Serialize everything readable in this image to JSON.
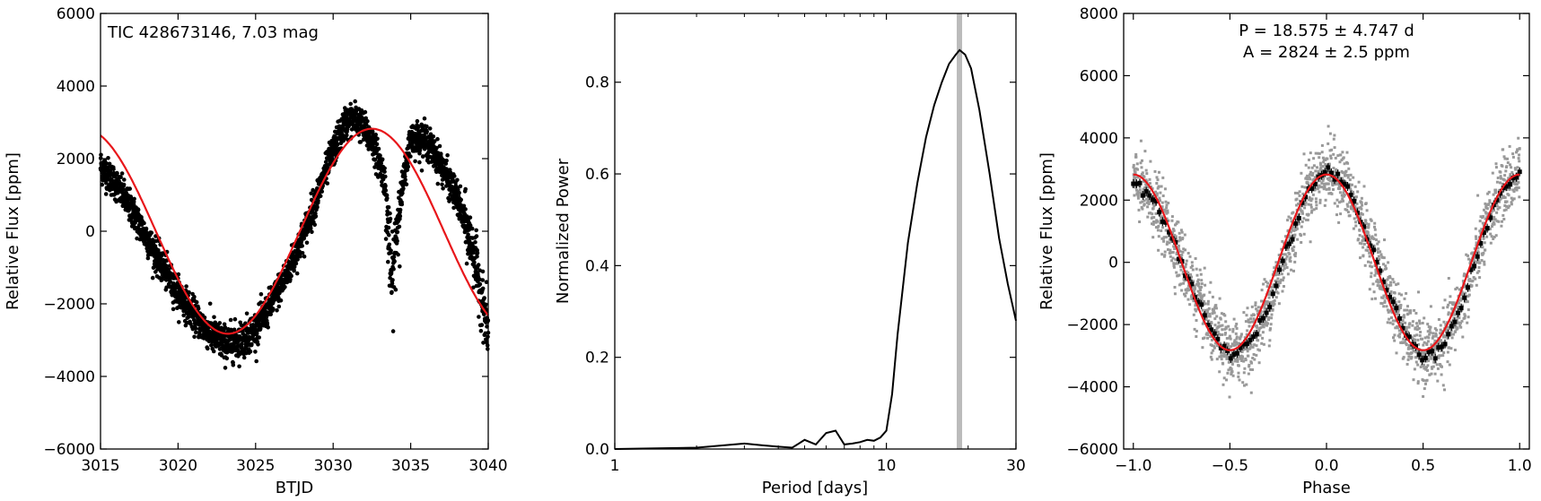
{
  "chart_data": [
    {
      "type": "scatter",
      "annotation": "TIC 428673146, 7.03 mag",
      "xlabel": "BTJD",
      "ylabel": "Relative Flux [ppm]",
      "xlim": [
        3015,
        3040
      ],
      "ylim": [
        -6000,
        6000
      ],
      "xticks": [
        3015,
        3020,
        3025,
        3030,
        3035,
        3040
      ],
      "yticks": [
        -6000,
        -4000,
        -2000,
        0,
        2000,
        4000,
        6000
      ],
      "xtick_labels": [
        "3015",
        "3020",
        "3025",
        "3030",
        "3035",
        "3040"
      ],
      "ytick_labels": [
        "−6000",
        "−4000",
        "−2000",
        "0",
        "2000",
        "4000",
        "6000"
      ],
      "data_color": "#000000",
      "model_color": "#e8161a",
      "data_points": [
        [
          3015.0,
          1800
        ],
        [
          3016.0,
          1300
        ],
        [
          3017.0,
          600
        ],
        [
          3018.0,
          -200
        ],
        [
          3019.0,
          -1000
        ],
        [
          3020.0,
          -1700
        ],
        [
          3021.0,
          -2300
        ],
        [
          3022.0,
          -2800
        ],
        [
          3023.0,
          -3100
        ],
        [
          3024.0,
          -3000
        ],
        [
          3025.0,
          -2700
        ],
        [
          3026.0,
          -2000
        ],
        [
          3027.0,
          -1200
        ],
        [
          3028.0,
          -200
        ],
        [
          3029.0,
          1000
        ],
        [
          3030.0,
          2200
        ],
        [
          3030.8,
          3000
        ],
        [
          3031.5,
          3100
        ],
        [
          3032.5,
          2500
        ],
        [
          3033.3,
          1500
        ],
        [
          3033.8,
          -1500
        ],
        [
          3034.2,
          500
        ],
        [
          3035.0,
          2600
        ],
        [
          3036.0,
          2500
        ],
        [
          3037.0,
          1800
        ],
        [
          3038.0,
          900
        ],
        [
          3039.0,
          -500
        ],
        [
          3040.0,
          -2800
        ]
      ],
      "model": {
        "amplitude": 2824,
        "period": 18.575,
        "phase_zero_btjd": 3032.5
      }
    },
    {
      "type": "line",
      "xlabel": "Period [days]",
      "ylabel": "Normalized Power",
      "xscale": "log",
      "xlim": [
        1,
        30
      ],
      "ylim": [
        0,
        0.95
      ],
      "xticks": [
        1,
        10,
        30
      ],
      "xtick_labels": [
        "1",
        "10",
        "30"
      ],
      "yticks": [
        0.0,
        0.2,
        0.4,
        0.6,
        0.8
      ],
      "ytick_labels": [
        "0.0",
        "0.2",
        "0.4",
        "0.6",
        "0.8"
      ],
      "peak_period": 18.575,
      "peak_marker_color": "#bbbbbb",
      "line_color": "#000000",
      "x": [
        1.0,
        2.0,
        3.0,
        3.5,
        4.0,
        4.5,
        5.0,
        5.5,
        6.0,
        6.5,
        7.0,
        7.5,
        8.0,
        8.5,
        9.0,
        9.5,
        10.0,
        10.5,
        11.0,
        12.0,
        13.0,
        14.0,
        15.0,
        16.0,
        17.0,
        18.0,
        18.6,
        19.5,
        20.5,
        22.0,
        24.0,
        26.0,
        28.0,
        30.0
      ],
      "y": [
        0.0,
        0.003,
        0.012,
        0.008,
        0.005,
        0.003,
        0.02,
        0.01,
        0.035,
        0.04,
        0.01,
        0.012,
        0.015,
        0.02,
        0.018,
        0.025,
        0.04,
        0.12,
        0.25,
        0.45,
        0.58,
        0.68,
        0.75,
        0.8,
        0.84,
        0.86,
        0.87,
        0.86,
        0.83,
        0.74,
        0.6,
        0.46,
        0.36,
        0.28
      ]
    },
    {
      "type": "scatter",
      "annotation_lines": [
        "P = 18.575 ± 4.747 d",
        "A = 2824 ± 2.5 ppm"
      ],
      "xlabel": "Phase",
      "ylabel": "Relative Flux [ppm]",
      "xlim": [
        -1.05,
        1.05
      ],
      "ylim": [
        -6000,
        8000
      ],
      "xticks": [
        -1.0,
        -0.5,
        0.0,
        0.5,
        1.0
      ],
      "xtick_labels": [
        "−1.0",
        "−0.5",
        "0.0",
        "0.5",
        "1.0"
      ],
      "yticks": [
        -6000,
        -4000,
        -2000,
        0,
        2000,
        4000,
        6000,
        8000
      ],
      "ytick_labels": [
        "−6000",
        "−4000",
        "−2000",
        "0",
        "2000",
        "4000",
        "6000",
        "8000"
      ],
      "raw_color": "#999999",
      "binned_color": "#000000",
      "model_color": "#e8161a",
      "binned_points": [
        [
          -1.0,
          2600
        ],
        [
          -0.9,
          2000
        ],
        [
          -0.8,
          800
        ],
        [
          -0.7,
          -700
        ],
        [
          -0.6,
          -2100
        ],
        [
          -0.5,
          -3000
        ],
        [
          -0.4,
          -2600
        ],
        [
          -0.3,
          -1400
        ],
        [
          -0.2,
          500
        ],
        [
          -0.1,
          2300
        ],
        [
          0.0,
          3000
        ],
        [
          0.1,
          2500
        ],
        [
          0.2,
          1000
        ],
        [
          0.3,
          -700
        ],
        [
          0.4,
          -2200
        ],
        [
          0.5,
          -3000
        ],
        [
          0.6,
          -2700
        ],
        [
          0.7,
          -1300
        ],
        [
          0.8,
          600
        ],
        [
          0.9,
          2300
        ],
        [
          1.0,
          2900
        ]
      ],
      "model": {
        "amplitude": 2824
      }
    }
  ]
}
